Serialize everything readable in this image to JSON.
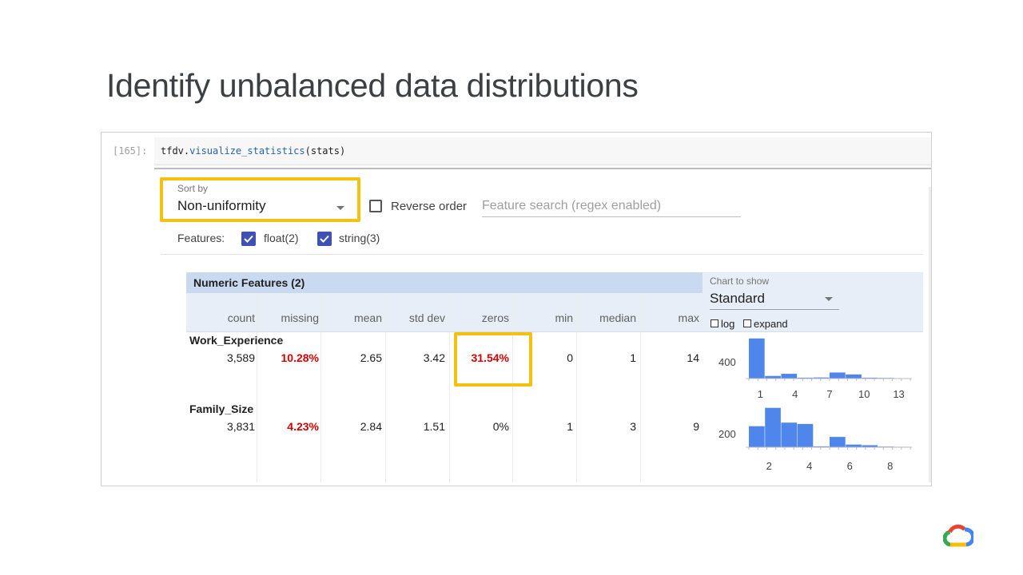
{
  "slide": {
    "title": "Identify unbalanced data distributions"
  },
  "cell": {
    "prompt": "[165]:",
    "code_obj": "tfdv.",
    "code_fn": "visualize_statistics",
    "code_args": "(stats)"
  },
  "controls": {
    "sort_label": "Sort by",
    "sort_value": "Non-uniformity",
    "reverse_label": "Reverse order",
    "reverse_checked": false,
    "search_placeholder": "Feature search (regex enabled)",
    "features_label": "Features:",
    "feature_filters": [
      {
        "label": "float(2)",
        "checked": true
      },
      {
        "label": "string(3)",
        "checked": true
      }
    ]
  },
  "table": {
    "section_title": "Numeric Features (2)",
    "columns": [
      "count",
      "missing",
      "mean",
      "std dev",
      "zeros",
      "min",
      "median",
      "max"
    ],
    "rows": [
      {
        "name": "Work_Experience",
        "values": [
          "3,589",
          "10.28%",
          "2.65",
          "3.42",
          "31.54%",
          "0",
          "1",
          "14"
        ]
      },
      {
        "name": "Family_Size",
        "values": [
          "3,831",
          "4.23%",
          "2.84",
          "1.51",
          "0%",
          "1",
          "3",
          "9"
        ]
      }
    ]
  },
  "chart_controls": {
    "label": "Chart to show",
    "value": "Standard",
    "log_label": "log",
    "expand_label": "expand"
  },
  "charts": [
    {
      "feature": "Work_Experience",
      "y_tick": "400",
      "x_ticks": [
        "1",
        "4",
        "7",
        "10",
        "13"
      ],
      "bar_color": "#4f86ec",
      "bins": [
        {
          "x0": 0,
          "x1": 1.4,
          "count": 930
        },
        {
          "x0": 1.4,
          "x1": 2.8,
          "count": 60
        },
        {
          "x0": 2.8,
          "x1": 4.2,
          "count": 110
        },
        {
          "x0": 4.2,
          "x1": 5.6,
          "count": 20
        },
        {
          "x0": 5.6,
          "x1": 7.0,
          "count": 25
        },
        {
          "x0": 7.0,
          "x1": 8.4,
          "count": 140
        },
        {
          "x0": 8.4,
          "x1": 9.8,
          "count": 95
        },
        {
          "x0": 9.8,
          "x1": 11.2,
          "count": 20
        },
        {
          "x0": 11.2,
          "x1": 12.6,
          "count": 15
        },
        {
          "x0": 12.6,
          "x1": 14.0,
          "count": 10
        }
      ],
      "x_domain": [
        0,
        14
      ],
      "y_max": 1000
    },
    {
      "feature": "Family_Size",
      "y_tick": "200",
      "x_ticks": [
        "2",
        "4",
        "6",
        "8"
      ],
      "bar_color": "#4f86ec",
      "bins": [
        {
          "x0": 1.0,
          "x1": 1.8,
          "count": 470
        },
        {
          "x0": 1.8,
          "x1": 2.6,
          "count": 880
        },
        {
          "x0": 2.6,
          "x1": 3.4,
          "count": 550
        },
        {
          "x0": 3.4,
          "x1": 4.2,
          "count": 520
        },
        {
          "x0": 4.2,
          "x1": 5.0,
          "count": 20
        },
        {
          "x0": 5.0,
          "x1": 5.8,
          "count": 230
        },
        {
          "x0": 5.8,
          "x1": 6.6,
          "count": 60
        },
        {
          "x0": 6.6,
          "x1": 7.4,
          "count": 45
        },
        {
          "x0": 7.4,
          "x1": 8.2,
          "count": 15
        },
        {
          "x0": 8.2,
          "x1": 9.0,
          "count": 10
        }
      ],
      "x_domain": [
        1,
        9
      ],
      "y_max": 1000
    }
  ],
  "colors": {
    "highlight": "#f4c20d",
    "red_value": "#d50000",
    "checkbox": "#3f51b5"
  },
  "logo": "google-cloud-logo"
}
